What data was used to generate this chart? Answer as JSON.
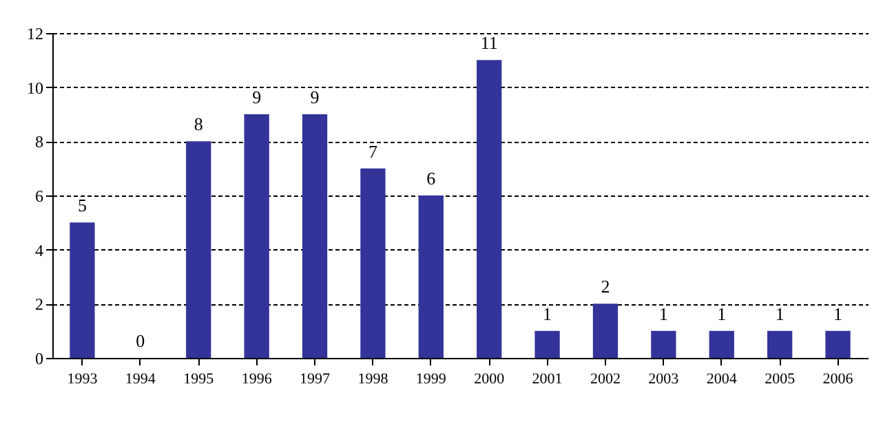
{
  "chart_data": {
    "type": "bar",
    "categories": [
      "1993",
      "1994",
      "1995",
      "1996",
      "1997",
      "1998",
      "1999",
      "2000",
      "2001",
      "2002",
      "2003",
      "2004",
      "2005",
      "2006"
    ],
    "values": [
      5,
      0,
      8,
      9,
      9,
      7,
      6,
      11,
      1,
      2,
      1,
      1,
      1,
      1
    ],
    "color": "#333399",
    "ylim": [
      0,
      12
    ],
    "yticks": [
      0,
      2,
      4,
      6,
      8,
      10,
      12
    ],
    "grid": "y",
    "data_labels": true
  }
}
